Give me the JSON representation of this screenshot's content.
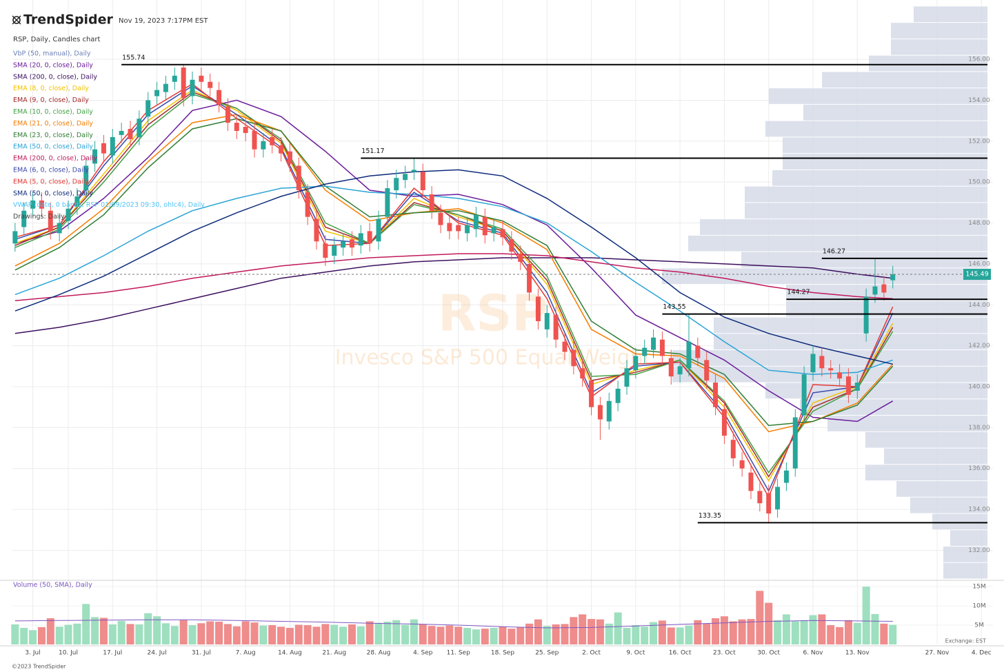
{
  "header": {
    "brand": "TrendSpider",
    "timestamp": "Nov 19, 2023 7:17PM EST"
  },
  "chart_data": {
    "type": "candlestick",
    "title": "RSP, Daily, Candles chart",
    "watermark": {
      "symbol": "RSP",
      "name": "Invesco S&P 500 Equal Weight"
    },
    "up_color": "#26a69a",
    "down_color": "#ef5350",
    "open": [
      147.0,
      147.8,
      148.7,
      149.1,
      148.6,
      147.5,
      148.1,
      148.8,
      149.6,
      150.9,
      151.9,
      151.3,
      152.3,
      152.6,
      152.2,
      153.2,
      154.2,
      154.4,
      154.9,
      155.6,
      154.2,
      155.2,
      154.9,
      154.5,
      153.7,
      152.9,
      152.7,
      152.5,
      151.6,
      152.2,
      151.8,
      151.5,
      150.8,
      149.5,
      148.2,
      147.0,
      146.4,
      146.8,
      147.2,
      146.9,
      147.6,
      147.1,
      148.3,
      149.6,
      150.1,
      150.5,
      150.5,
      149.4,
      148.5,
      148.0,
      147.9,
      147.5,
      147.7,
      148.3,
      147.5,
      147.7,
      147.2,
      146.5,
      146.0,
      144.4,
      142.8,
      143.5,
      142.2,
      141.8,
      140.9,
      140.3,
      139.1,
      138.3,
      139.2,
      140.0,
      140.8,
      141.5,
      141.8,
      142.3,
      141.4,
      140.6,
      140.9,
      142.0,
      141.3,
      140.2,
      138.9,
      137.4,
      136.4,
      135.8,
      134.9,
      134.8,
      134.0,
      135.3,
      136.0,
      138.6,
      140.7,
      141.5,
      140.9,
      140.7,
      140.5,
      139.8,
      142.6,
      144.5,
      145.0,
      145.2
    ],
    "high": [
      148.0,
      149.0,
      149.5,
      149.5,
      149.0,
      148.4,
      149.1,
      149.7,
      151.2,
      152.0,
      152.3,
      152.6,
      152.9,
      153.0,
      153.5,
      154.4,
      154.9,
      155.2,
      155.6,
      155.74,
      155.4,
      155.6,
      155.3,
      154.9,
      154.1,
      153.3,
      153.1,
      152.9,
      152.4,
      152.6,
      152.2,
      151.9,
      151.2,
      149.9,
      148.6,
      147.4,
      147.3,
      147.5,
      147.6,
      147.9,
      148.0,
      148.6,
      150.1,
      150.6,
      150.8,
      151.17,
      150.9,
      149.8,
      148.9,
      148.4,
      148.3,
      148.3,
      148.8,
      148.7,
      148.2,
      148.1,
      147.6,
      146.9,
      146.4,
      144.8,
      144.0,
      143.9,
      142.6,
      142.2,
      141.3,
      140.7,
      139.5,
      139.7,
      140.3,
      141.3,
      141.9,
      142.3,
      142.8,
      142.7,
      141.8,
      141.4,
      143.55,
      142.4,
      141.7,
      140.6,
      139.3,
      137.8,
      136.8,
      136.2,
      135.3,
      135.2,
      135.5,
      136.3,
      138.9,
      141.0,
      142.0,
      141.9,
      141.3,
      141.1,
      140.9,
      140.6,
      144.8,
      146.27,
      145.4,
      145.9
    ],
    "low": [
      146.6,
      147.4,
      148.3,
      148.3,
      147.2,
      147.1,
      147.7,
      148.4,
      149.2,
      150.5,
      151.0,
      150.9,
      151.9,
      151.7,
      151.8,
      152.8,
      153.8,
      154.0,
      154.5,
      153.7,
      153.8,
      154.5,
      154.2,
      153.4,
      152.5,
      152.1,
      152.0,
      151.2,
      151.2,
      151.4,
      151.0,
      150.5,
      149.2,
      147.9,
      146.7,
      145.9,
      146.0,
      146.4,
      146.4,
      146.5,
      146.6,
      146.7,
      147.9,
      149.2,
      149.7,
      150.1,
      149.2,
      148.2,
      147.5,
      147.2,
      147.2,
      147.1,
      147.3,
      147.0,
      147.1,
      146.9,
      146.2,
      145.7,
      144.2,
      142.8,
      142.4,
      141.9,
      141.3,
      140.6,
      140.0,
      138.6,
      137.4,
      137.9,
      138.8,
      139.6,
      140.4,
      141.1,
      141.4,
      141.1,
      140.1,
      140.2,
      140.5,
      141.0,
      139.9,
      138.6,
      137.2,
      136.1,
      135.6,
      134.5,
      133.9,
      133.35,
      133.6,
      134.9,
      135.6,
      138.2,
      140.3,
      140.5,
      140.4,
      140.0,
      139.2,
      139.4,
      142.2,
      144.1,
      144.2,
      144.8
    ],
    "close": [
      147.6,
      148.6,
      149.1,
      148.7,
      147.6,
      148.0,
      148.7,
      149.3,
      150.8,
      151.6,
      151.4,
      152.2,
      152.5,
      152.1,
      153.1,
      154.0,
      154.5,
      154.8,
      155.2,
      154.1,
      155.0,
      154.9,
      154.6,
      153.8,
      152.9,
      152.5,
      152.4,
      151.6,
      152.0,
      151.8,
      151.4,
      150.9,
      149.6,
      148.3,
      147.1,
      146.3,
      146.9,
      147.1,
      146.8,
      147.5,
      147.0,
      148.2,
      149.7,
      150.2,
      150.4,
      150.6,
      149.6,
      148.6,
      147.9,
      147.6,
      147.6,
      147.9,
      148.4,
      147.4,
      147.8,
      147.3,
      146.6,
      146.1,
      144.6,
      143.2,
      143.6,
      142.3,
      141.7,
      141.0,
      140.4,
      139.0,
      138.4,
      139.3,
      139.9,
      140.9,
      141.5,
      141.9,
      142.4,
      141.5,
      140.5,
      141.0,
      142.2,
      141.4,
      140.3,
      139.0,
      137.6,
      136.5,
      136.0,
      134.9,
      134.3,
      133.8,
      135.1,
      135.9,
      138.5,
      140.6,
      141.6,
      140.9,
      140.8,
      140.4,
      139.6,
      140.2,
      144.4,
      144.9,
      144.6,
      145.49
    ],
    "xlim": [
      -0.3,
      110.3
    ],
    "xticks": [
      {
        "value": 2,
        "label": "3. Jul"
      },
      {
        "value": 6,
        "label": "10. Jul"
      },
      {
        "value": 11,
        "label": "17. Jul"
      },
      {
        "value": 16,
        "label": "24. Jul"
      },
      {
        "value": 21,
        "label": "31. Jul"
      },
      {
        "value": 26,
        "label": "7. Aug"
      },
      {
        "value": 31,
        "label": "14. Aug"
      },
      {
        "value": 36,
        "label": "21. Aug"
      },
      {
        "value": 41,
        "label": "28. Aug"
      },
      {
        "value": 46,
        "label": "4. Sep"
      },
      {
        "value": 50,
        "label": "11. Sep"
      },
      {
        "value": 55,
        "label": "18. Sep"
      },
      {
        "value": 60,
        "label": "25. Sep"
      },
      {
        "value": 65,
        "label": "2. Oct"
      },
      {
        "value": 70,
        "label": "9. Oct"
      },
      {
        "value": 75,
        "label": "16. Oct"
      },
      {
        "value": 80,
        "label": "23. Oct"
      },
      {
        "value": 85,
        "label": "30. Oct"
      },
      {
        "value": 90,
        "label": "6. Nov"
      },
      {
        "value": 95,
        "label": "13. Nov"
      },
      {
        "value": 104,
        "label": "27. Nov"
      },
      {
        "value": 109,
        "label": "4. Dec"
      }
    ],
    "ylim": [
      130.6,
      158.9
    ],
    "yticks": [
      {
        "value": 132,
        "label": "132.00"
      },
      {
        "value": 134,
        "label": "134.00"
      },
      {
        "value": 136,
        "label": "136.00"
      },
      {
        "value": 138,
        "label": "138.00"
      },
      {
        "value": 140,
        "label": "140.00"
      },
      {
        "value": 142,
        "label": "142.00"
      },
      {
        "value": 144,
        "label": "144.00"
      },
      {
        "value": 146,
        "label": "146.00"
      },
      {
        "value": 148,
        "label": "148.00"
      },
      {
        "value": 150,
        "label": "150.00"
      },
      {
        "value": 152,
        "label": "152.00"
      },
      {
        "value": 154,
        "label": "154.00"
      },
      {
        "value": 156,
        "label": "156.00"
      }
    ],
    "grid": true,
    "vbp": {
      "name": "VbP (50, manual), Daily",
      "color": "#6b7fb8",
      "fill": "#d5dbe8",
      "bins": [
        130.6,
        131.4,
        132.2,
        133.0,
        133.8,
        134.6,
        135.4,
        136.2,
        137.0,
        137.8,
        138.6,
        139.4,
        140.2,
        141.0,
        141.8,
        142.6,
        143.4,
        144.2,
        145.0,
        145.8,
        146.6,
        147.4,
        148.2,
        149.0,
        149.8,
        150.6,
        151.4,
        152.2,
        153.0,
        153.8,
        154.6,
        155.4,
        156.2,
        157.0,
        157.8,
        158.6
      ],
      "values": [
        64,
        64,
        54,
        80,
        112,
        132,
        177,
        150,
        177,
        232,
        272,
        322,
        457,
        457,
        397,
        397,
        292,
        292,
        472,
        357,
        434,
        417,
        352,
        352,
        312,
        297,
        297,
        322,
        267,
        317,
        240,
        172,
        140,
        140,
        107
      ]
    },
    "ma_x": [
      0,
      5,
      10,
      15,
      20,
      25,
      30,
      35,
      40,
      45,
      50,
      55,
      60,
      65,
      70,
      75,
      80,
      85,
      90,
      95,
      99
    ],
    "series": [
      {
        "name": "SMA (20, 0, close), Daily",
        "color": "#6a1b9a",
        "values": [
          147.0,
          147.6,
          149.2,
          151.2,
          153.5,
          154.0,
          153.2,
          151.5,
          149.6,
          149.3,
          149.4,
          148.9,
          147.9,
          145.8,
          143.5,
          142.4,
          141.3,
          139.8,
          138.5,
          138.3,
          139.3
        ]
      },
      {
        "name": "SMA (200, 0, close), Daily",
        "color": "#3c0f5e",
        "values": [
          142.6,
          142.9,
          143.3,
          143.8,
          144.3,
          144.8,
          145.3,
          145.6,
          145.9,
          146.1,
          146.2,
          146.3,
          146.3,
          146.3,
          146.2,
          146.1,
          146.0,
          145.9,
          145.8,
          145.5,
          145.3
        ]
      },
      {
        "name": "EMA (8, 0, close), Daily",
        "color": "#f2c200",
        "values": [
          147.0,
          147.8,
          150.4,
          153.0,
          154.5,
          153.5,
          151.9,
          147.6,
          147.0,
          149.2,
          148.3,
          147.6,
          145.0,
          140.1,
          140.8,
          141.3,
          139.0,
          135.4,
          139.2,
          140.0,
          143.1
        ]
      },
      {
        "name": "EMA (9, 0, close), Daily",
        "color": "#a52a2a",
        "values": [
          146.9,
          147.8,
          150.2,
          152.8,
          154.4,
          153.6,
          152.0,
          147.8,
          147.0,
          149.0,
          148.4,
          147.6,
          145.2,
          140.3,
          140.7,
          141.3,
          139.2,
          135.6,
          139.0,
          139.9,
          142.9
        ]
      },
      {
        "name": "EMA (10, 0, close), Daily",
        "color": "#43a047",
        "values": [
          146.8,
          147.7,
          150.0,
          152.6,
          154.3,
          153.6,
          152.1,
          148.0,
          147.0,
          148.9,
          148.4,
          147.7,
          145.4,
          140.5,
          140.6,
          141.3,
          139.3,
          135.8,
          138.8,
          139.9,
          142.7
        ]
      },
      {
        "name": "EMA (21, 0, close), Daily",
        "color": "#f57c00",
        "values": [
          145.9,
          147.0,
          148.7,
          151.0,
          152.9,
          153.3,
          152.5,
          149.6,
          148.1,
          148.5,
          148.7,
          148.0,
          146.7,
          142.8,
          141.6,
          141.5,
          140.4,
          137.8,
          138.3,
          139.2,
          141.1
        ]
      },
      {
        "name": "EMA (23, 0, close), Daily",
        "color": "#2e7d32",
        "values": [
          145.7,
          146.8,
          148.4,
          150.7,
          152.6,
          153.1,
          152.5,
          149.8,
          148.3,
          148.5,
          148.6,
          148.1,
          146.9,
          143.2,
          141.8,
          141.6,
          140.6,
          138.1,
          138.3,
          139.1,
          141.0
        ]
      },
      {
        "name": "EMA (50, 0, close), Daily",
        "color": "#29a3d6",
        "values": [
          144.5,
          145.3,
          146.4,
          147.6,
          148.6,
          149.2,
          149.7,
          149.8,
          149.5,
          149.4,
          149.2,
          148.8,
          148.0,
          146.6,
          145.1,
          143.7,
          142.2,
          140.8,
          140.6,
          140.7,
          141.3
        ]
      },
      {
        "name": "EMA (200, 0, close), Daily",
        "color": "#c2185b",
        "values": [
          144.2,
          144.4,
          144.6,
          144.9,
          145.3,
          145.6,
          145.9,
          146.1,
          146.3,
          146.4,
          146.5,
          146.5,
          146.4,
          146.1,
          145.8,
          145.6,
          145.3,
          144.9,
          144.6,
          144.4,
          144.3
        ]
      },
      {
        "name": "EMA (6, 0, close), Daily",
        "color": "#3949ab",
        "values": [
          147.2,
          147.9,
          150.8,
          153.3,
          154.7,
          153.3,
          151.7,
          147.2,
          147.0,
          149.5,
          148.1,
          147.5,
          144.6,
          139.7,
          141.0,
          141.2,
          138.7,
          134.9,
          139.7,
          140.0,
          143.6
        ]
      },
      {
        "name": "EMA (5, 0, close), Daily",
        "color": "#e53935",
        "values": [
          147.3,
          147.9,
          151.0,
          153.5,
          154.8,
          153.1,
          151.6,
          146.9,
          147.0,
          149.7,
          148.0,
          147.4,
          144.3,
          139.5,
          141.1,
          141.2,
          138.5,
          134.6,
          140.1,
          140.0,
          143.9
        ]
      },
      {
        "name": "SMA (50, 0, close), Daily",
        "color": "#0d2a7a",
        "values": [
          143.7,
          144.5,
          145.4,
          146.5,
          147.6,
          148.5,
          149.3,
          149.9,
          150.3,
          150.5,
          150.6,
          150.3,
          149.2,
          147.8,
          146.3,
          144.6,
          143.4,
          142.6,
          142.0,
          141.5,
          141.1
        ]
      }
    ],
    "vwap": {
      "name": "VWAP (date, 0 bands, RSP 01/09/2023 09:30, ohlc4), Daily",
      "color": "#4fc3f7"
    },
    "drawings": {
      "name": "Drawings: Daily",
      "color": "#444444"
    },
    "levels": [
      {
        "value": 155.74,
        "from": 12
      },
      {
        "value": 151.17,
        "from": 39
      },
      {
        "value": 146.27,
        "from": 91
      },
      {
        "value": 144.27,
        "from": 87
      },
      {
        "value": 143.55,
        "from": 73
      },
      {
        "value": 133.35,
        "from": 77
      }
    ],
    "volume": {
      "title": "Volume (50, SMA), Daily",
      "color": "#7e57c2",
      "up_color": "#9ddfbf",
      "down_color": "#ef8c8c",
      "values": [
        5.2,
        4.3,
        3.7,
        4.5,
        6.8,
        4.6,
        5.1,
        5.4,
        10.5,
        7.1,
        6.9,
        5.2,
        6.1,
        5.3,
        5.2,
        8.1,
        7.3,
        5.5,
        4.8,
        6.3,
        5.0,
        5.5,
        6.0,
        5.9,
        5.3,
        4.7,
        6.0,
        5.7,
        4.9,
        5.0,
        4.6,
        4.3,
        5.1,
        5.0,
        4.6,
        5.3,
        5.1,
        4.6,
        5.2,
        4.7,
        6.0,
        5.6,
        5.9,
        6.3,
        5.1,
        6.5,
        5.2,
        4.8,
        4.6,
        4.9,
        4.6,
        4.3,
        3.9,
        4.1,
        4.3,
        4.6,
        4.1,
        4.5,
        5.4,
        6.5,
        4.8,
        5.2,
        5.3,
        7.1,
        7.8,
        6.6,
        6.5,
        5.4,
        8.3,
        4.3,
        5.0,
        4.6,
        5.8,
        6.2,
        4.4,
        4.4,
        4.9,
        6.3,
        5.4,
        6.8,
        7.3,
        6.0,
        6.5,
        6.6,
        13.9,
        10.8,
        6.3,
        7.8,
        6.0,
        6.3,
        7.6,
        7.8,
        5.0,
        4.5,
        6.3,
        5.6,
        15.0,
        7.9,
        5.4,
        5.1
      ],
      "sma": [
        6.1,
        6.2,
        6.3,
        6.4,
        6.4,
        6.2,
        6.0,
        5.8,
        5.5,
        5.3,
        5.0,
        4.6,
        4.3,
        4.4,
        4.8,
        5.2,
        5.6,
        6.0,
        6.2,
        6.1,
        6.0
      ],
      "ylim": [
        0,
        16.1
      ],
      "yticks": [
        {
          "value": 5,
          "label": "5M"
        },
        {
          "value": 10,
          "label": "10M"
        },
        {
          "value": 15,
          "label": "15M"
        }
      ]
    },
    "exchange": "Exchange: EST"
  },
  "footer": "©2023 TrendSpider"
}
